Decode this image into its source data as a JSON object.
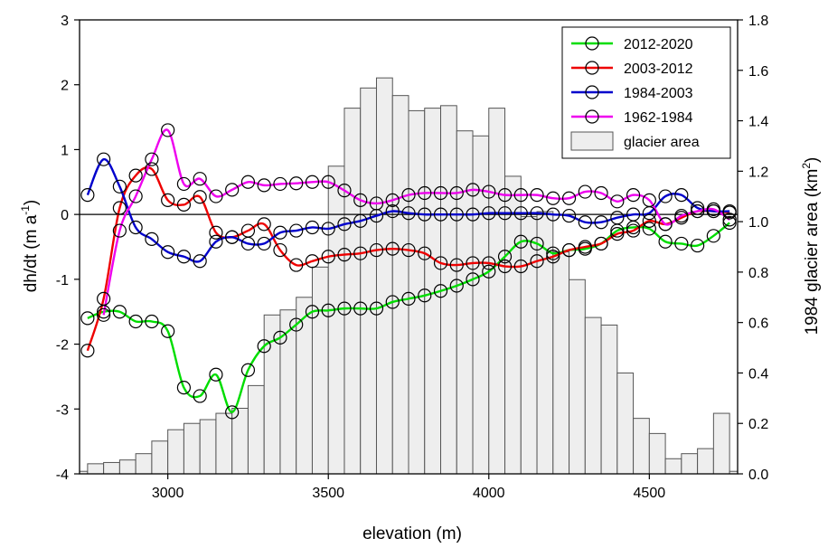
{
  "chart_data": {
    "type": "line",
    "x_axis": {
      "label": "elevation (m)",
      "range": [
        2725,
        4775
      ],
      "ticks": [
        3000,
        3500,
        4000,
        4500
      ]
    },
    "y_left": {
      "label_prefix": "dh/dt (m a",
      "label_sup": "-1",
      "label_suffix": ")",
      "range": [
        -4,
        3
      ],
      "ticks": [
        -4,
        -3,
        -2,
        -1,
        0,
        1,
        2,
        3
      ]
    },
    "y_right": {
      "label_prefix": "1984 glacier area (km",
      "label_sup": "2",
      "label_suffix": ")",
      "range": [
        0,
        1.8
      ],
      "ticks": [
        "0.0",
        "0.2",
        "0.4",
        "0.6",
        "0.8",
        "1.0",
        "1.2",
        "1.4",
        "1.6",
        "1.8"
      ]
    },
    "zero_line": 0,
    "bars": {
      "name": "glacier area",
      "bin_width": 50,
      "fill": "#eeeeee",
      "stroke": "#555555",
      "x": [
        2725,
        2775,
        2825,
        2875,
        2925,
        2975,
        3025,
        3075,
        3125,
        3175,
        3225,
        3275,
        3325,
        3375,
        3425,
        3475,
        3525,
        3575,
        3625,
        3675,
        3725,
        3775,
        3825,
        3875,
        3925,
        3975,
        4025,
        4075,
        4125,
        4175,
        4225,
        4275,
        4325,
        4375,
        4425,
        4475,
        4525,
        4575,
        4625,
        4675,
        4725,
        4775
      ],
      "values": [
        0.01,
        0.04,
        0.045,
        0.055,
        0.08,
        0.13,
        0.175,
        0.2,
        0.215,
        0.24,
        0.26,
        0.35,
        0.63,
        0.65,
        0.7,
        0.82,
        1.22,
        1.45,
        1.53,
        1.57,
        1.5,
        1.44,
        1.45,
        1.46,
        1.36,
        1.34,
        1.45,
        1.18,
        1.02,
        1.04,
        0.88,
        0.77,
        0.62,
        0.59,
        0.4,
        0.22,
        0.16,
        0.06,
        0.08,
        0.1,
        0.24,
        0.01
      ]
    },
    "series": [
      {
        "name": "2012-2020",
        "color": "#00dd00",
        "x": [
          2750,
          2800,
          2850,
          2900,
          2950,
          3000,
          3050,
          3100,
          3150,
          3200,
          3250,
          3300,
          3350,
          3400,
          3450,
          3500,
          3550,
          3600,
          3650,
          3700,
          3750,
          3800,
          3850,
          3900,
          3950,
          4000,
          4050,
          4100,
          4150,
          4200,
          4250,
          4300,
          4350,
          4400,
          4450,
          4500,
          4550,
          4600,
          4650,
          4700,
          4750
        ],
        "values": [
          -1.6,
          -1.5,
          -1.5,
          -1.65,
          -1.65,
          -1.8,
          -2.67,
          -2.8,
          -2.47,
          -3.05,
          -2.4,
          -2.03,
          -1.9,
          -1.7,
          -1.5,
          -1.48,
          -1.45,
          -1.45,
          -1.45,
          -1.35,
          -1.3,
          -1.25,
          -1.18,
          -1.1,
          -1.0,
          -0.88,
          -0.65,
          -0.42,
          -0.45,
          -0.6,
          -0.55,
          -0.53,
          -0.45,
          -0.25,
          -0.2,
          -0.22,
          -0.42,
          -0.45,
          -0.48,
          -0.33,
          -0.13
        ]
      },
      {
        "name": "2003-2012",
        "color": "#ee0000",
        "x": [
          2750,
          2800,
          2850,
          2900,
          2950,
          3000,
          3050,
          3100,
          3150,
          3200,
          3250,
          3300,
          3350,
          3400,
          3450,
          3500,
          3550,
          3600,
          3650,
          3700,
          3750,
          3800,
          3850,
          3900,
          3950,
          4000,
          4050,
          4100,
          4150,
          4200,
          4250,
          4300,
          4350,
          4400,
          4450,
          4500,
          4550,
          4600,
          4650,
          4700,
          4750
        ],
        "values": [
          -2.1,
          -1.3,
          0.1,
          0.6,
          0.7,
          0.22,
          0.15,
          0.27,
          -0.28,
          -0.35,
          -0.25,
          -0.15,
          -0.55,
          -0.78,
          -0.72,
          -0.65,
          -0.62,
          -0.6,
          -0.55,
          -0.53,
          -0.55,
          -0.6,
          -0.75,
          -0.78,
          -0.75,
          -0.75,
          -0.8,
          -0.8,
          -0.72,
          -0.65,
          -0.55,
          -0.5,
          -0.45,
          -0.3,
          -0.25,
          -0.1,
          -0.15,
          -0.05,
          0.05,
          0.05,
          0.03
        ]
      },
      {
        "name": "1984-2003",
        "color": "#0000cc",
        "x": [
          2750,
          2800,
          2850,
          2900,
          2950,
          3000,
          3050,
          3100,
          3150,
          3200,
          3250,
          3300,
          3350,
          3400,
          3450,
          3500,
          3550,
          3600,
          3650,
          3700,
          3750,
          3800,
          3850,
          3900,
          3950,
          4000,
          4050,
          4100,
          4150,
          4200,
          4250,
          4300,
          4350,
          4400,
          4450,
          4500,
          4550,
          4600,
          4650,
          4700,
          4750
        ],
        "values": [
          0.3,
          0.85,
          0.43,
          -0.2,
          -0.38,
          -0.58,
          -0.65,
          -0.72,
          -0.42,
          -0.35,
          -0.45,
          -0.45,
          -0.28,
          -0.25,
          -0.2,
          -0.22,
          -0.15,
          -0.1,
          -0.02,
          0.05,
          0.02,
          0.0,
          0.0,
          0.0,
          0.0,
          0.02,
          0.02,
          0.02,
          0.02,
          0.0,
          -0.02,
          -0.12,
          -0.12,
          -0.05,
          0.0,
          0.02,
          0.28,
          0.3,
          0.1,
          0.05,
          0.05
        ]
      },
      {
        "name": "1962-1984",
        "color": "#ee00ee",
        "x": [
          2800,
          2850,
          2900,
          2950,
          3000,
          3050,
          3100,
          3150,
          3200,
          3250,
          3300,
          3350,
          3400,
          3450,
          3500,
          3550,
          3600,
          3650,
          3700,
          3750,
          3800,
          3850,
          3900,
          3950,
          4000,
          4050,
          4100,
          4150,
          4200,
          4250,
          4300,
          4350,
          4400,
          4450,
          4500,
          4550,
          4600,
          4650,
          4700,
          4750
        ],
        "values": [
          -1.55,
          -0.25,
          0.28,
          0.85,
          1.3,
          0.47,
          0.55,
          0.28,
          0.38,
          0.5,
          0.45,
          0.47,
          0.48,
          0.5,
          0.5,
          0.37,
          0.22,
          0.17,
          0.22,
          0.3,
          0.33,
          0.33,
          0.33,
          0.38,
          0.35,
          0.3,
          0.3,
          0.3,
          0.25,
          0.25,
          0.35,
          0.33,
          0.2,
          0.3,
          0.22,
          -0.15,
          -0.02,
          0.05,
          0.08,
          -0.08
        ]
      }
    ],
    "legend": {
      "placement": "top-right",
      "entries": [
        "2012-2020",
        "2003-2012",
        "1984-2003",
        "1962-1984",
        "glacier area"
      ]
    }
  }
}
